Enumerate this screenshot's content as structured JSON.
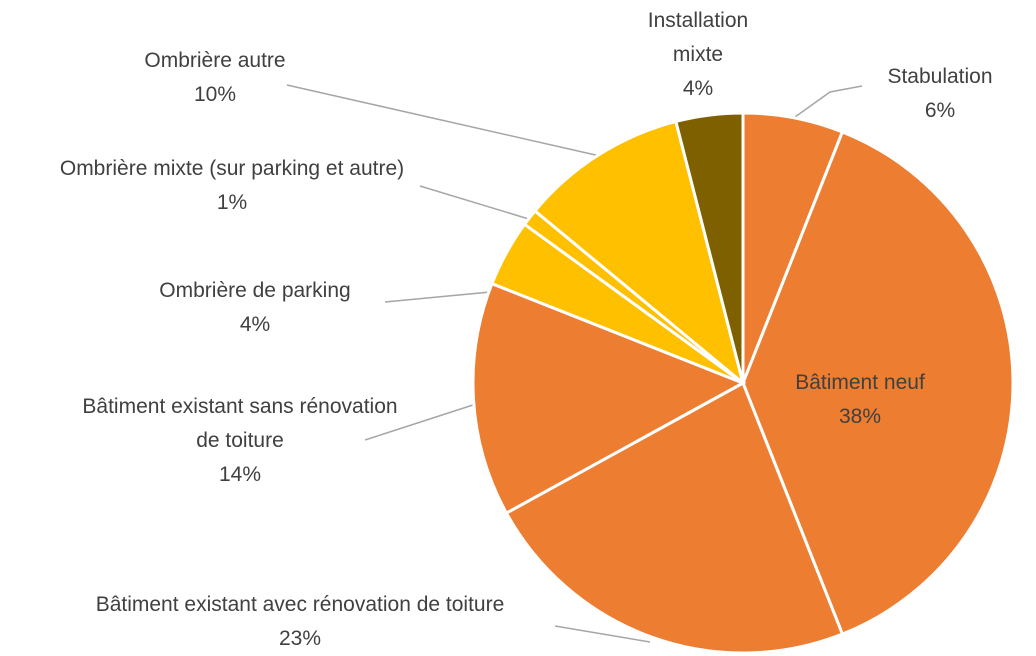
{
  "chart_data": {
    "type": "pie",
    "categories": [
      "Stabulation",
      "Bâtiment neuf",
      "Bâtiment existant avec rénovation de toiture",
      "Bâtiment existant sans rénovation de toiture",
      "Ombrière de parking",
      "Ombrière mixte (sur parking et autre)",
      "Ombrière autre",
      "Installation mixte"
    ],
    "values": [
      6,
      38,
      23,
      14,
      4,
      1,
      10,
      4
    ],
    "value_labels": [
      "6%",
      "38%",
      "23%",
      "14%",
      "4%",
      "1%",
      "10%",
      "4%"
    ],
    "colors": [
      "#ED7D31",
      "#ED7D31",
      "#ED7D31",
      "#ED7D31",
      "#FFC000",
      "#FFC000",
      "#FFC000",
      "#7F6000"
    ]
  }
}
